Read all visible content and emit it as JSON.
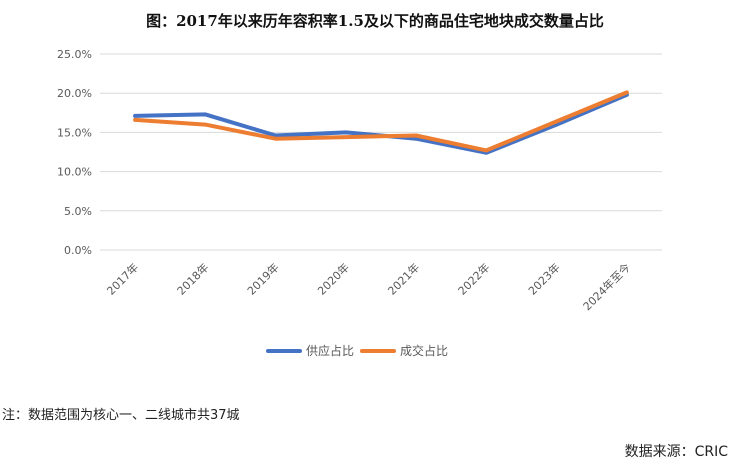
{
  "chart_data": {
    "type": "line",
    "title": "图：2017年以来历年容积率1.5及以下的商品住宅地块成交数量占比",
    "categories": [
      "2017年",
      "2018年",
      "2019年",
      "2020年",
      "2021年",
      "2022年",
      "2023年",
      "2024年至今"
    ],
    "series": [
      {
        "name": "供应占比",
        "values": [
          17.1,
          17.3,
          14.6,
          15.0,
          14.2,
          12.4,
          16.0,
          19.8
        ],
        "color": "#4472C4"
      },
      {
        "name": "成交占比",
        "values": [
          16.6,
          16.0,
          14.2,
          14.4,
          14.6,
          12.7,
          16.4,
          20.1
        ],
        "color": "#ED7D31"
      }
    ],
    "yticks": [
      "0.0%",
      "5.0%",
      "10.0%",
      "15.0%",
      "20.0%",
      "25.0%"
    ],
    "ylim": [
      0,
      25
    ],
    "grid": true,
    "legend": "bottom"
  },
  "footer": {
    "note": "注：数据范围为核心一、二线城市共37城",
    "source": "数据来源：CRIC"
  }
}
